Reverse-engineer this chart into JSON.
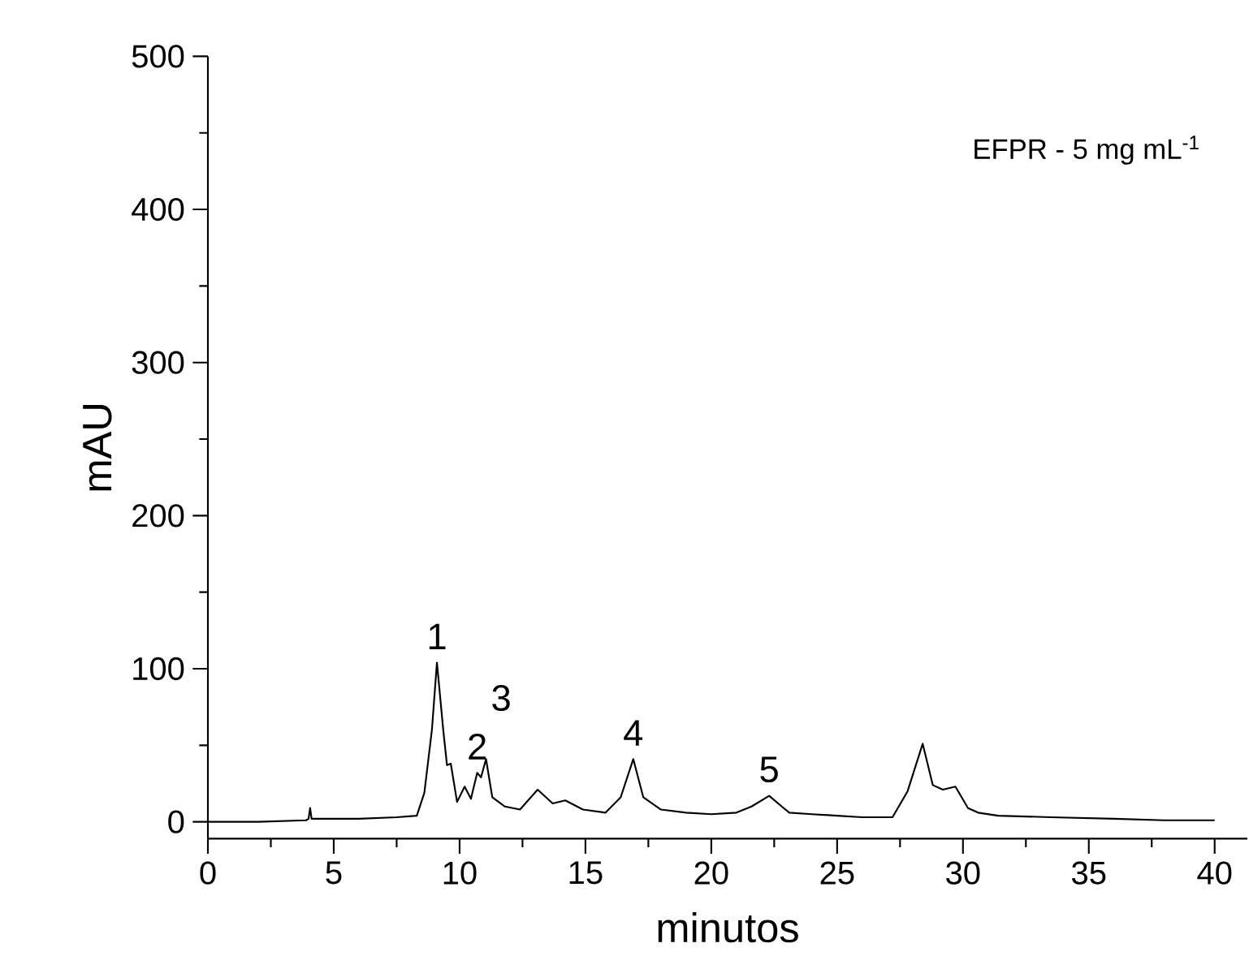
{
  "chart_data": {
    "type": "line",
    "xlabel": "minutos",
    "ylabel": "mAU",
    "xlim": [
      0,
      41.3
    ],
    "ylim": [
      -11,
      500
    ],
    "xticks": [
      0,
      5,
      10,
      15,
      20,
      25,
      30,
      35,
      40
    ],
    "yticks": [
      0,
      100,
      200,
      300,
      400,
      500
    ],
    "grid": false,
    "marker": "none",
    "line_style": "solid",
    "series": [
      {
        "color": "#000000",
        "x": [
          0,
          2,
          3.9,
          4.0,
          4.06,
          4.12,
          4.3,
          6,
          7.5,
          8.3,
          8.6,
          8.9,
          9.1,
          9.35,
          9.5,
          9.65,
          9.9,
          10.2,
          10.45,
          10.7,
          10.85,
          11.05,
          11.3,
          11.8,
          12.4,
          13.1,
          13.7,
          14.2,
          14.9,
          15.8,
          16.4,
          16.9,
          17.3,
          18,
          19,
          20,
          21,
          21.6,
          22.3,
          22.8,
          23.1,
          24,
          25,
          26,
          27.2,
          27.8,
          28.4,
          28.8,
          29.2,
          29.7,
          30.2,
          30.6,
          31.4,
          33.5,
          36,
          38,
          40
        ],
        "values": [
          0,
          0,
          1,
          2,
          9,
          2,
          2,
          2,
          3,
          4,
          19,
          60,
          104,
          60,
          37,
          38,
          13,
          23,
          15,
          32,
          29,
          41,
          16,
          10,
          8,
          21,
          12,
          14,
          8,
          6,
          16,
          41,
          16,
          8,
          6,
          5,
          6,
          10,
          17,
          10,
          6,
          5,
          4,
          3,
          3,
          20,
          51,
          24,
          21,
          23,
          9,
          6,
          4,
          3,
          2,
          1,
          1
        ]
      }
    ],
    "annotations": [
      {
        "text": "1",
        "x": 9.1,
        "y": 104
      },
      {
        "text": "2",
        "x": 10.7,
        "y": 32
      },
      {
        "text": "3",
        "x": 11.05,
        "y": 41
      },
      {
        "text": "4",
        "x": 16.9,
        "y": 41
      },
      {
        "text": "5",
        "x": 22.3,
        "y": 17
      },
      "EFPR - 5 mg mL$^{-1}$"
    ]
  }
}
